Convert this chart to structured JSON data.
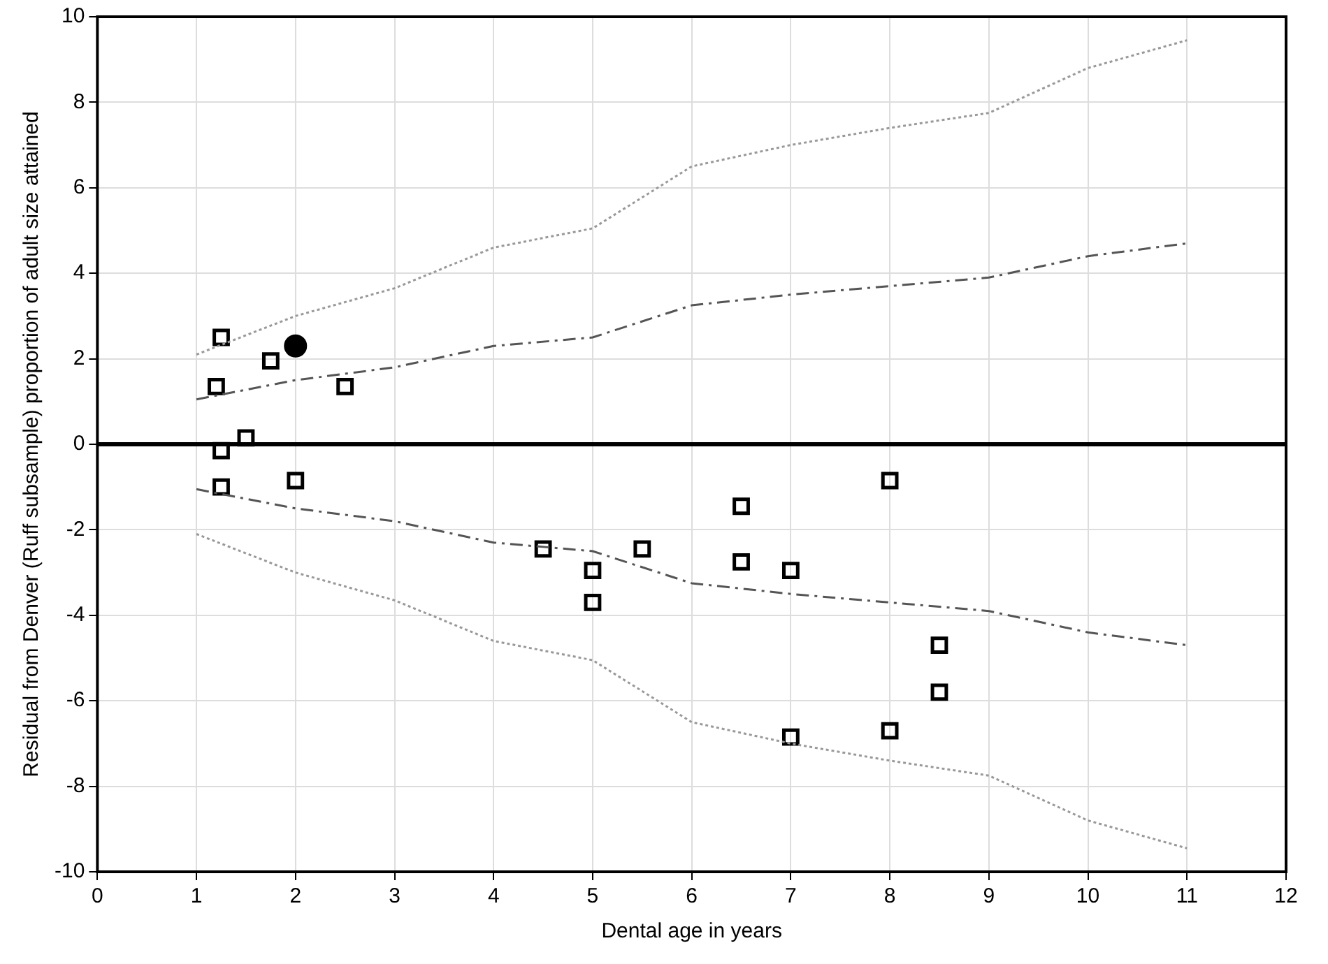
{
  "chart_data": {
    "type": "scatter",
    "xlabel": "Dental age in years",
    "ylabel": "Residual from Denver (Ruff subsample) proportion of adult size attained",
    "xlim": [
      0,
      12
    ],
    "xticks": [
      0,
      1,
      2,
      3,
      4,
      5,
      6,
      7,
      8,
      9,
      10,
      11,
      12
    ],
    "ylim": [
      -10,
      10
    ],
    "yticks": [
      -10,
      -8,
      -6,
      -4,
      -2,
      0,
      2,
      4,
      6,
      8,
      10
    ],
    "grid": true,
    "legend": false,
    "ref_lines": [
      {
        "axis": "y",
        "value": 0,
        "color": "#000000",
        "line_style": "solid"
      }
    ],
    "series": [
      {
        "type": "line",
        "color": "#999999",
        "marker": "none",
        "line_style": "dotted",
        "x": [
          1,
          2,
          3,
          4,
          5,
          6,
          7,
          8,
          9,
          10,
          11
        ],
        "values": [
          2.1,
          3.0,
          3.65,
          4.6,
          5.05,
          6.5,
          7.0,
          7.4,
          7.75,
          8.8,
          9.45
        ]
      },
      {
        "type": "line",
        "color": "#555555",
        "marker": "none",
        "line_style": "dashed",
        "x": [
          1,
          2,
          3,
          4,
          5,
          6,
          7,
          8,
          9,
          10,
          11
        ],
        "values": [
          1.05,
          1.5,
          1.8,
          2.3,
          2.5,
          3.25,
          3.5,
          3.7,
          3.9,
          4.4,
          4.7
        ]
      },
      {
        "type": "line",
        "color": "#555555",
        "marker": "none",
        "line_style": "dashed",
        "x": [
          1,
          2,
          3,
          4,
          5,
          6,
          7,
          8,
          9,
          10,
          11
        ],
        "values": [
          -1.05,
          -1.5,
          -1.8,
          -2.3,
          -2.5,
          -3.25,
          -3.5,
          -3.7,
          -3.9,
          -4.4,
          -4.7
        ]
      },
      {
        "type": "line",
        "color": "#999999",
        "marker": "none",
        "line_style": "dotted",
        "x": [
          1,
          2,
          3,
          4,
          5,
          6,
          7,
          8,
          9,
          10,
          11
        ],
        "values": [
          -2.1,
          -3.0,
          -3.65,
          -4.6,
          -5.05,
          -6.5,
          -7.0,
          -7.4,
          -7.75,
          -8.8,
          -9.45
        ]
      },
      {
        "type": "scatter",
        "color": "#000000",
        "marker": "square",
        "x": [
          1.25,
          1.2,
          1.75,
          2.5,
          1.5,
          1.25,
          1.25,
          2,
          4.5,
          5,
          5,
          5.5,
          6.5,
          6.5,
          7,
          7,
          8,
          8,
          8.5,
          8.5
        ],
        "values": [
          2.5,
          1.35,
          1.95,
          1.35,
          0.15,
          -0.15,
          -1.0,
          -0.85,
          -2.45,
          -2.95,
          -3.7,
          -2.45,
          -1.45,
          -2.75,
          -2.95,
          -6.85,
          -0.85,
          -6.7,
          -4.7,
          -5.8
        ]
      },
      {
        "type": "scatter",
        "color": "#000000",
        "marker": "circle",
        "x": [
          2
        ],
        "values": [
          2.3
        ]
      }
    ]
  }
}
